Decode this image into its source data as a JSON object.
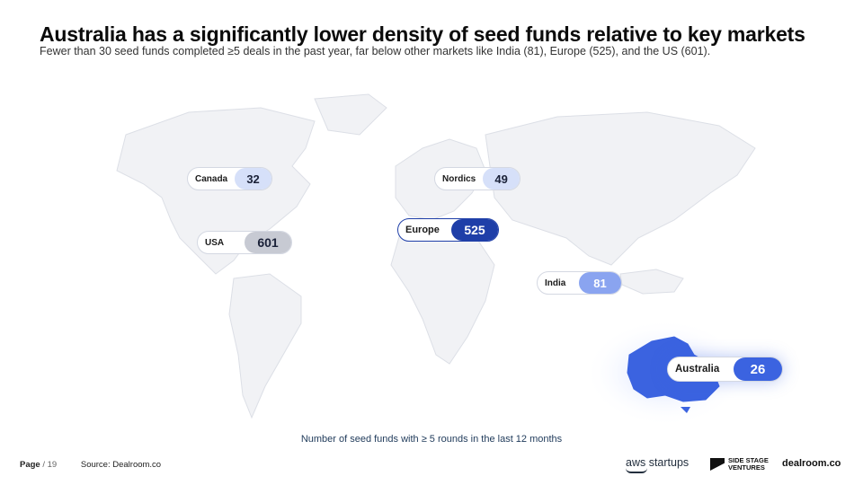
{
  "header": {
    "title": "Australia has a significantly lower density of seed funds relative to key markets",
    "subtitle": "Fewer than 30 seed funds completed ≥5 deals in the past year,  far below other markets like India (81), Europe (525), and the US (601)."
  },
  "markets": [
    {
      "id": "canada",
      "label": "Canada",
      "value": "32",
      "color": "#d6e0f9",
      "text_color": "#1a2138"
    },
    {
      "id": "usa",
      "label": "USA",
      "value": "601",
      "color": "#c7cad3",
      "text_color": "#1a2138"
    },
    {
      "id": "nordics",
      "label": "Nordics",
      "value": "49",
      "color": "#d6e0f9",
      "text_color": "#1a2138"
    },
    {
      "id": "europe",
      "label": "Europe",
      "value": "525",
      "color": "#1f3fa8",
      "text_color": "#ffffff"
    },
    {
      "id": "india",
      "label": "India",
      "value": "81",
      "color": "#8aa4f0",
      "text_color": "#ffffff"
    },
    {
      "id": "australia",
      "label": "Australia",
      "value": "26",
      "color": "#3b63e0",
      "text_color": "#ffffff"
    }
  ],
  "caption": "Number of seed funds with ≥ 5 rounds in the last 12 months",
  "footer": {
    "page_label": "Page",
    "page_total": "/ 19",
    "source": "Source:  Dealroom.co",
    "logos": {
      "aws": "aws startups",
      "ssv_line1": "SIDE STAGE",
      "ssv_line2": "VENTURES",
      "dealroom": "dealroom.co"
    }
  },
  "colors": {
    "map_land": "#f1f2f5",
    "map_border": "#dcdfe6",
    "australia_highlight": "#3b63e0"
  }
}
